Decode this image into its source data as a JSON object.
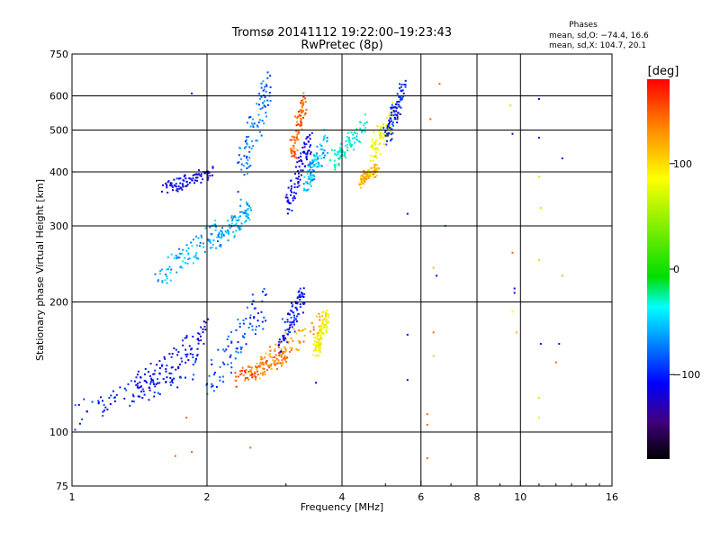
{
  "chart_data": {
    "type": "scatter",
    "title": "Tromsø 20141112 19:22:00–19:23:43",
    "subtitle": "RwPretec (8p)",
    "xlabel": "Frequency [MHz]",
    "ylabel": "Stationary phase Virtual Height [km]",
    "x_scale": "log",
    "y_scale": "log",
    "xlim": [
      1,
      16
    ],
    "ylim": [
      75,
      750
    ],
    "x_ticks": [
      1,
      2,
      4,
      6,
      8,
      10,
      16
    ],
    "x_tick_labels": [
      "1",
      "2",
      "4",
      "6",
      "8",
      "10",
      "16"
    ],
    "y_ticks": [
      75,
      100,
      200,
      300,
      400,
      500,
      600,
      750
    ],
    "y_tick_labels": [
      "75",
      "100",
      "200",
      "300",
      "400",
      "500",
      "600",
      "750"
    ],
    "grid": true,
    "stats_title": "Phases",
    "stats_lines": [
      "mean, sd,O: −74.4, 16.6",
      "mean, sd,X: 104.7, 20.1"
    ],
    "colorbar": {
      "unit_label": "[deg]",
      "range": [
        -180,
        180
      ],
      "ticks": [
        100,
        0,
        -100
      ],
      "tick_labels": [
        "100",
        "0",
        "−100"
      ]
    },
    "echo_traces": [
      {
        "f_start": 1.0,
        "f_end": 1.9,
        "h_start": 108,
        "h_end": 142,
        "phase": -95
      },
      {
        "f_start": 1.4,
        "f_end": 2.0,
        "h_start": 125,
        "h_end": 170,
        "phase": -110
      },
      {
        "f_start": 1.55,
        "f_end": 2.1,
        "h_start": 230,
        "h_end": 290,
        "phase": -55
      },
      {
        "f_start": 1.6,
        "f_end": 2.05,
        "h_start": 365,
        "h_end": 400,
        "phase": -110
      },
      {
        "f_start": 2.0,
        "f_end": 2.7,
        "h_start": 130,
        "h_end": 200,
        "phase": -85
      },
      {
        "f_start": 2.1,
        "f_end": 2.5,
        "h_start": 275,
        "h_end": 330,
        "phase": -60
      },
      {
        "f_start": 2.35,
        "f_end": 2.75,
        "h_start": 380,
        "h_end": 640,
        "phase": -75
      },
      {
        "f_start": 2.3,
        "f_end": 3.0,
        "h_start": 132,
        "h_end": 150,
        "phase": 150
      },
      {
        "f_start": 2.6,
        "f_end": 3.6,
        "h_start": 140,
        "h_end": 180,
        "phase": 130
      },
      {
        "f_start": 2.9,
        "f_end": 3.3,
        "h_start": 160,
        "h_end": 210,
        "phase": -100
      },
      {
        "f_start": 3.0,
        "f_end": 3.4,
        "h_start": 330,
        "h_end": 460,
        "phase": -110
      },
      {
        "f_start": 3.1,
        "f_end": 3.3,
        "h_start": 440,
        "h_end": 580,
        "phase": 150
      },
      {
        "f_start": 3.3,
        "f_end": 3.7,
        "h_start": 370,
        "h_end": 470,
        "phase": -55
      },
      {
        "f_start": 3.5,
        "f_end": 3.7,
        "h_start": 155,
        "h_end": 185,
        "phase": 95
      },
      {
        "f_start": 3.8,
        "f_end": 4.5,
        "h_start": 420,
        "h_end": 510,
        "phase": -30
      },
      {
        "f_start": 4.4,
        "f_end": 4.8,
        "h_start": 380,
        "h_end": 410,
        "phase": 120
      },
      {
        "f_start": 4.6,
        "f_end": 5.3,
        "h_start": 430,
        "h_end": 560,
        "phase": 90
      },
      {
        "f_start": 5.0,
        "f_end": 5.5,
        "h_start": 480,
        "h_end": 620,
        "phase": -100
      }
    ],
    "sparse_echoes": [
      {
        "f": 1.85,
        "h": 608,
        "phase": -110
      },
      {
        "f": 1.7,
        "h": 88,
        "phase": 150
      },
      {
        "f": 1.85,
        "h": 90,
        "phase": 150
      },
      {
        "f": 1.8,
        "h": 108,
        "phase": 150
      },
      {
        "f": 2.5,
        "h": 92,
        "phase": 150
      },
      {
        "f": 3.5,
        "h": 130,
        "phase": -110
      },
      {
        "f": 5.6,
        "h": 320,
        "phase": -110
      },
      {
        "f": 5.6,
        "h": 168,
        "phase": -110
      },
      {
        "f": 5.6,
        "h": 132,
        "phase": -110
      },
      {
        "f": 6.2,
        "h": 110,
        "phase": 150
      },
      {
        "f": 6.2,
        "h": 104,
        "phase": 150
      },
      {
        "f": 6.2,
        "h": 87,
        "phase": 150
      },
      {
        "f": 6.3,
        "h": 530,
        "phase": 150
      },
      {
        "f": 6.4,
        "h": 170,
        "phase": 150
      },
      {
        "f": 6.4,
        "h": 150,
        "phase": 60
      },
      {
        "f": 6.4,
        "h": 240,
        "phase": 120
      },
      {
        "f": 6.5,
        "h": 230,
        "phase": -110
      },
      {
        "f": 6.6,
        "h": 640,
        "phase": 150
      },
      {
        "f": 6.8,
        "h": 300,
        "phase": -70
      },
      {
        "f": 9.5,
        "h": 570,
        "phase": 110
      },
      {
        "f": 9.6,
        "h": 490,
        "phase": -110
      },
      {
        "f": 9.7,
        "h": 210,
        "phase": -110
      },
      {
        "f": 9.7,
        "h": 215,
        "phase": -110
      },
      {
        "f": 9.6,
        "h": 260,
        "phase": 150
      },
      {
        "f": 9.6,
        "h": 190,
        "phase": 100
      },
      {
        "f": 9.8,
        "h": 170,
        "phase": 120
      },
      {
        "f": 11.0,
        "h": 590,
        "phase": -110
      },
      {
        "f": 11.0,
        "h": 480,
        "phase": -110
      },
      {
        "f": 11.0,
        "h": 390,
        "phase": 110
      },
      {
        "f": 11.1,
        "h": 330,
        "phase": 110
      },
      {
        "f": 11.0,
        "h": 250,
        "phase": 110
      },
      {
        "f": 11.1,
        "h": 160,
        "phase": -110
      },
      {
        "f": 11.0,
        "h": 120,
        "phase": 110
      },
      {
        "f": 11.0,
        "h": 108,
        "phase": 100
      },
      {
        "f": 12.2,
        "h": 160,
        "phase": -110
      },
      {
        "f": 12.4,
        "h": 430,
        "phase": -110
      },
      {
        "f": 12.4,
        "h": 230,
        "phase": 50
      },
      {
        "f": 12.0,
        "h": 145,
        "phase": 150
      }
    ]
  }
}
